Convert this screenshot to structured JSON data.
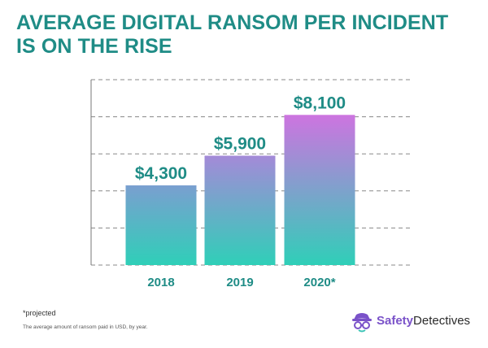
{
  "title": {
    "line1": "AVERAGE DIGITAL RANSOM PER INCIDENT",
    "line2": "IS ON THE RISE"
  },
  "chart_data": {
    "type": "bar",
    "categories": [
      "2018",
      "2019",
      "2020*"
    ],
    "values": [
      4300,
      5900,
      8100
    ],
    "value_labels": [
      "$4,300",
      "$5,900",
      "$8,100"
    ],
    "ylim": [
      0,
      10000
    ],
    "grid": true,
    "grid_style": "dashed",
    "legend": "none",
    "colors": {
      "bar_bottom": "#2fcfb8",
      "bar_top_2018": "#7a9fd0",
      "bar_top_2019": "#a48ad8",
      "bar_top_2020": "#cd74e0",
      "label": "#1f8c86",
      "grid": "#888888"
    }
  },
  "footnote": "*projected",
  "caption": "The average amount of ransom paid in USD, by year.",
  "logo": {
    "brand_part1": "Safety",
    "brand_part2": "Detectives",
    "icon": "detective-icon"
  }
}
